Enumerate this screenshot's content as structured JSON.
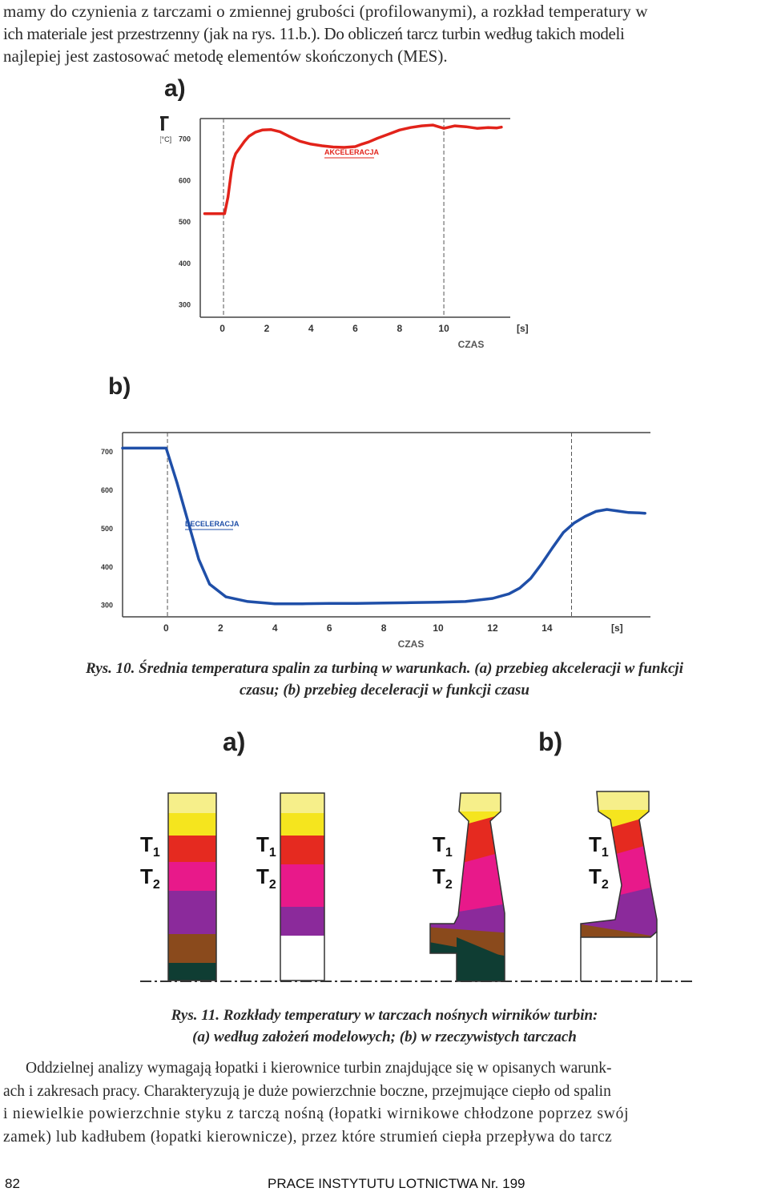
{
  "top_paragraph": {
    "lines": [
      "mamy do czynienia z tarczami o zmiennej grubości (profilowanymi), a rozkład temperatury w",
      "ich materiale jest przestrzenny (jak na rys. 11.b.). Do obliczeń tarcz turbin według takich modeli",
      "najlepiej jest zastosować metodę elementów skończonych (MES)."
    ]
  },
  "chart_data": [
    {
      "type": "line",
      "panel_label": "a)",
      "ylabel": "T",
      "yunit": "[°C]",
      "xlabel": "CZAS",
      "xunit": "[s]",
      "xticks": [
        0,
        2,
        4,
        6,
        8,
        10
      ],
      "yticks": [
        300,
        400,
        500,
        600,
        700
      ],
      "xlim": [
        -1,
        13
      ],
      "ylim": [
        270,
        740
      ],
      "grid": false,
      "color": "#e2231a",
      "series": [
        {
          "name": "AKCELERACJA",
          "x": [
            -0.8,
            0.1,
            0.25,
            0.4,
            0.5,
            0.6,
            0.8,
            1.0,
            1.2,
            1.5,
            1.8,
            2.2,
            2.6,
            3.0,
            3.5,
            4.0,
            4.5,
            5.0,
            5.5,
            6.0,
            6.3,
            6.6,
            7.0,
            7.5,
            8.0,
            8.5,
            9.0,
            9.5,
            10.0,
            10.5,
            11.0,
            11.5,
            12.0,
            12.4,
            12.6
          ],
          "y": [
            520,
            520,
            560,
            620,
            650,
            665,
            680,
            695,
            707,
            717,
            722,
            723,
            718,
            707,
            695,
            688,
            684,
            681,
            680,
            682,
            688,
            693,
            702,
            712,
            722,
            728,
            732,
            734,
            726,
            732,
            730,
            726,
            728,
            727,
            729
          ]
        }
      ]
    },
    {
      "type": "line",
      "panel_label": "b)",
      "ylabel": "T",
      "yunit": "[°C]",
      "xlabel": "CZAS",
      "xunit": "[s]",
      "xticks": [
        0,
        2,
        4,
        6,
        8,
        10,
        12,
        14
      ],
      "yticks": [
        300,
        400,
        500,
        600,
        700
      ],
      "xlim": [
        -1.6,
        17.8
      ],
      "ylim": [
        270,
        740
      ],
      "grid": false,
      "color": "#1f4fa8",
      "series": [
        {
          "name": "DECELERACJA",
          "x": [
            -1.6,
            0,
            0.4,
            0.8,
            1.2,
            1.6,
            2.2,
            3.0,
            4.0,
            5.0,
            6.0,
            7.0,
            8.0,
            9.0,
            10.0,
            11.0,
            12.0,
            12.6,
            13.0,
            13.4,
            13.8,
            14.2,
            14.6,
            15.0,
            15.4,
            15.8,
            16.2,
            16.6,
            17.0,
            17.4,
            17.6
          ],
          "y": [
            710,
            710,
            620,
            520,
            420,
            355,
            322,
            310,
            304,
            304,
            305,
            305,
            306,
            307,
            308,
            310,
            318,
            330,
            345,
            370,
            408,
            450,
            490,
            515,
            532,
            545,
            550,
            546,
            542,
            541,
            540
          ]
        }
      ]
    }
  ],
  "caption_10": {
    "line1": "Rys. 10. Średnia temperatura spalin za turbiną w warunkach. (a) przebieg akceleracji w funkcji",
    "line2": "czasu; (b) przebieg deceleracji w funkcji czasu"
  },
  "figure_11": {
    "label_a": "a)",
    "label_b": "b)",
    "t1": "T",
    "t1_sub": "1",
    "t2": "T",
    "t2_sub": "2",
    "colors": {
      "pale_yellow": "#f6ef8a",
      "yellow": "#f5e51e",
      "red": "#e52a20",
      "pink": "#e8198a",
      "purple": "#8b2a9b",
      "brown": "#8a4a1c",
      "dark_teal": "#0f3d33"
    }
  },
  "caption_11": {
    "line1": "Rys. 11. Rozkłady temperatury w tarczach nośnych wirników turbin:",
    "line2": "(a) według założeń modelowych; (b) w rzeczywistych tarczach"
  },
  "bottom_paragraph": {
    "lines": [
      "Oddzielnej analizy wymagają łopatki i kierownice turbin znajdujące się w opisanych warunk-",
      "ach i zakresach pracy. Charakteryzują je duże powierzchnie boczne, przejmujące ciepło od spalin",
      "i niewielkie powierzchnie styku z tarczą nośną (łopatki wirnikowe chłodzone poprzez swój",
      "zamek) lub kadłubem (łopatki kierownicze), przez które strumień ciepła przepływa do tarcz"
    ]
  },
  "footer": {
    "page_number": "82",
    "journal": "PRACE INSTYTUTU LOTNICTWA Nr. 199"
  }
}
